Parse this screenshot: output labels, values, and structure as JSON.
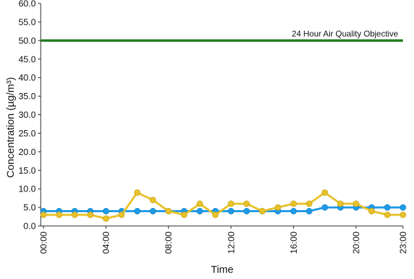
{
  "chart_data": {
    "type": "line",
    "xlabel": "Time",
    "ylabel": "Concentration (µg/m³)",
    "ylim": [
      0,
      60
    ],
    "yticks": [
      "0.0",
      "5.0",
      "10.0",
      "15.0",
      "20.0",
      "25.0",
      "30.0",
      "35.0",
      "40.0",
      "45.0",
      "50.0",
      "55.0",
      "60.0"
    ],
    "x": [
      "00:00",
      "01:00",
      "02:00",
      "03:00",
      "04:00",
      "05:00",
      "06:00",
      "07:00",
      "08:00",
      "09:00",
      "10:00",
      "11:00",
      "12:00",
      "13:00",
      "14:00",
      "15:00",
      "16:00",
      "17:00",
      "18:00",
      "19:00",
      "20:00",
      "21:00",
      "22:00",
      "23:00"
    ],
    "xtick_labels": [
      "00:00",
      "04:00",
      "08:00",
      "12:00",
      "16:00",
      "20:00",
      "23:00"
    ],
    "grid": false,
    "legend": "none",
    "series": [
      {
        "color": "#1e9be6",
        "marker": "circle",
        "values": [
          4,
          4,
          4,
          4,
          4,
          4,
          4,
          4,
          4,
          4,
          4,
          4,
          4,
          4,
          4,
          4,
          4,
          4,
          5,
          5,
          5,
          5,
          5,
          5
        ]
      },
      {
        "color": "#e8c22a",
        "marker": "circle",
        "values": [
          3,
          3,
          3,
          3,
          2,
          3,
          9,
          7,
          4,
          3,
          6,
          3,
          6,
          6,
          4,
          5,
          6,
          6,
          9,
          6,
          6,
          4,
          3,
          3
        ]
      }
    ],
    "reference_line": {
      "value": 50,
      "label": "24 Hour Air Quality Objective",
      "color": "#1f7a1f"
    }
  }
}
